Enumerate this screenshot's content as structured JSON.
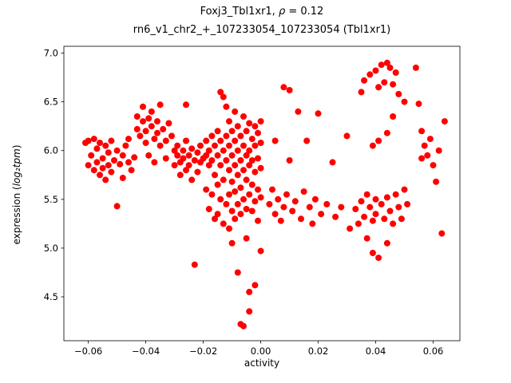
{
  "figure": {
    "title_prefix": "Foxj3_Tbl1xr1, ",
    "title_rho": "ρ",
    "title_rest": " = 0.12",
    "title_line2": "rn6_v1_chr2_+_107233054_107233054 (Tbl1xr1)",
    "x_label": "activity",
    "y_label_prefix": "expression (",
    "y_label_math": "log₂tpm",
    "y_label_suffix": ")"
  },
  "chart_data": {
    "type": "scatter",
    "title": "Foxj3_Tbl1xr1, ρ = 0.12",
    "subtitle": "rn6_v1_chr2_+_107233054_107233054 (Tbl1xr1)",
    "xlabel": "activity",
    "ylabel": "expression (log2tpm)",
    "marker_color": "#ff0000",
    "marker_size_px": 4,
    "grid": false,
    "legend": "none",
    "xlim": [
      -0.0685,
      0.0693
    ],
    "ylim": [
      4.05,
      7.07
    ],
    "x_ticks": [
      -0.06,
      -0.04,
      -0.02,
      0.0,
      0.02,
      0.04,
      0.06
    ],
    "x_tick_labels": [
      "−0.06",
      "−0.04",
      "−0.02",
      "0.00",
      "0.02",
      "0.04",
      "0.06"
    ],
    "y_ticks": [
      4.5,
      5.0,
      5.5,
      6.0,
      6.5,
      7.0
    ],
    "y_tick_labels": [
      "4.5",
      "5.0",
      "5.5",
      "6.0",
      "6.5",
      "7.0"
    ],
    "points": [
      [
        -0.061,
        6.08
      ],
      [
        -0.06,
        6.1
      ],
      [
        -0.06,
        5.85
      ],
      [
        -0.059,
        5.95
      ],
      [
        -0.058,
        6.12
      ],
      [
        -0.058,
        5.8
      ],
      [
        -0.057,
        5.88
      ],
      [
        -0.057,
        6.02
      ],
      [
        -0.056,
        5.75
      ],
      [
        -0.056,
        6.08
      ],
      [
        -0.055,
        5.92
      ],
      [
        -0.055,
        5.82
      ],
      [
        -0.054,
        6.05
      ],
      [
        -0.054,
        5.7
      ],
      [
        -0.053,
        5.98
      ],
      [
        -0.053,
        5.85
      ],
      [
        -0.052,
        6.1
      ],
      [
        -0.052,
        5.78
      ],
      [
        -0.051,
        5.9
      ],
      [
        -0.05,
        6.0
      ],
      [
        -0.05,
        5.43
      ],
      [
        -0.049,
        5.86
      ],
      [
        -0.048,
        5.95
      ],
      [
        -0.048,
        5.72
      ],
      [
        -0.047,
        6.05
      ],
      [
        -0.046,
        5.88
      ],
      [
        -0.046,
        6.12
      ],
      [
        -0.045,
        5.8
      ],
      [
        -0.044,
        5.93
      ],
      [
        -0.043,
        6.22
      ],
      [
        -0.043,
        6.35
      ],
      [
        -0.042,
        6.15
      ],
      [
        -0.041,
        6.3
      ],
      [
        -0.041,
        6.45
      ],
      [
        -0.04,
        6.2
      ],
      [
        -0.04,
        6.08
      ],
      [
        -0.039,
        6.33
      ],
      [
        -0.039,
        5.95
      ],
      [
        -0.038,
        6.25
      ],
      [
        -0.038,
        6.4
      ],
      [
        -0.037,
        6.12
      ],
      [
        -0.037,
        5.88
      ],
      [
        -0.036,
        6.3
      ],
      [
        -0.036,
        6.18
      ],
      [
        -0.035,
        6.47
      ],
      [
        -0.035,
        6.05
      ],
      [
        -0.034,
        6.22
      ],
      [
        -0.033,
        6.1
      ],
      [
        -0.033,
        5.92
      ],
      [
        -0.032,
        6.28
      ],
      [
        -0.031,
        6.15
      ],
      [
        -0.03,
        6.0
      ],
      [
        -0.03,
        5.85
      ],
      [
        -0.026,
        6.47
      ],
      [
        -0.029,
        5.95
      ],
      [
        -0.029,
        6.05
      ],
      [
        -0.028,
        5.88
      ],
      [
        -0.028,
        5.75
      ],
      [
        -0.027,
        6.0
      ],
      [
        -0.027,
        5.92
      ],
      [
        -0.026,
        5.8
      ],
      [
        -0.026,
        6.1
      ],
      [
        -0.025,
        5.95
      ],
      [
        -0.025,
        5.85
      ],
      [
        -0.024,
        6.02
      ],
      [
        -0.024,
        5.7
      ],
      [
        -0.023,
        5.9
      ],
      [
        -0.023,
        4.83
      ],
      [
        -0.022,
        5.98
      ],
      [
        -0.022,
        5.78
      ],
      [
        -0.021,
        5.88
      ],
      [
        -0.021,
        6.05
      ],
      [
        -0.02,
        5.92
      ],
      [
        -0.019,
        6.1
      ],
      [
        -0.019,
        5.95
      ],
      [
        -0.019,
        5.6
      ],
      [
        -0.018,
        6.0
      ],
      [
        -0.018,
        5.85
      ],
      [
        -0.018,
        5.4
      ],
      [
        -0.017,
        6.15
      ],
      [
        -0.017,
        5.9
      ],
      [
        -0.017,
        5.55
      ],
      [
        -0.016,
        6.05
      ],
      [
        -0.016,
        5.75
      ],
      [
        -0.016,
        5.3
      ],
      [
        -0.015,
        6.2
      ],
      [
        -0.015,
        5.95
      ],
      [
        -0.015,
        5.65
      ],
      [
        -0.015,
        5.35
      ],
      [
        -0.014,
        6.6
      ],
      [
        -0.014,
        6.1
      ],
      [
        -0.014,
        5.85
      ],
      [
        -0.014,
        5.5
      ],
      [
        -0.013,
        6.55
      ],
      [
        -0.013,
        6.0
      ],
      [
        -0.013,
        5.7
      ],
      [
        -0.013,
        5.25
      ],
      [
        -0.012,
        6.45
      ],
      [
        -0.012,
        6.15
      ],
      [
        -0.012,
        5.9
      ],
      [
        -0.012,
        5.45
      ],
      [
        -0.011,
        6.3
      ],
      [
        -0.011,
        6.05
      ],
      [
        -0.011,
        5.8
      ],
      [
        -0.011,
        5.55
      ],
      [
        -0.011,
        5.2
      ],
      [
        -0.01,
        6.2
      ],
      [
        -0.01,
        5.95
      ],
      [
        -0.01,
        5.68
      ],
      [
        -0.01,
        5.38
      ],
      [
        -0.01,
        5.05
      ],
      [
        -0.009,
        6.4
      ],
      [
        -0.009,
        6.1
      ],
      [
        -0.009,
        5.85
      ],
      [
        -0.009,
        5.58
      ],
      [
        -0.009,
        5.3
      ],
      [
        -0.008,
        6.25
      ],
      [
        -0.008,
        6.0
      ],
      [
        -0.008,
        5.75
      ],
      [
        -0.008,
        5.45
      ],
      [
        -0.008,
        4.75
      ],
      [
        -0.007,
        6.15
      ],
      [
        -0.007,
        5.9
      ],
      [
        -0.007,
        5.62
      ],
      [
        -0.007,
        5.35
      ],
      [
        -0.007,
        4.22
      ],
      [
        -0.006,
        6.35
      ],
      [
        -0.006,
        6.05
      ],
      [
        -0.006,
        5.8
      ],
      [
        -0.006,
        5.5
      ],
      [
        -0.006,
        4.2
      ],
      [
        -0.005,
        6.2
      ],
      [
        -0.005,
        5.95
      ],
      [
        -0.005,
        5.7
      ],
      [
        -0.005,
        5.4
      ],
      [
        -0.005,
        5.1
      ],
      [
        -0.004,
        6.28
      ],
      [
        -0.004,
        6.0
      ],
      [
        -0.004,
        5.85
      ],
      [
        -0.004,
        5.55
      ],
      [
        -0.004,
        4.55
      ],
      [
        -0.004,
        4.35
      ],
      [
        -0.003,
        6.12
      ],
      [
        -0.003,
        5.9
      ],
      [
        -0.003,
        5.65
      ],
      [
        -0.003,
        5.38
      ],
      [
        -0.002,
        6.25
      ],
      [
        -0.002,
        6.05
      ],
      [
        -0.002,
        5.78
      ],
      [
        -0.002,
        5.48
      ],
      [
        -0.002,
        4.62
      ],
      [
        -0.001,
        6.18
      ],
      [
        -0.001,
        5.92
      ],
      [
        -0.001,
        5.6
      ],
      [
        -0.001,
        5.28
      ],
      [
        0.0,
        6.3
      ],
      [
        0.0,
        6.08
      ],
      [
        0.0,
        5.82
      ],
      [
        0.0,
        5.52
      ],
      [
        0.0,
        4.97
      ],
      [
        0.003,
        5.45
      ],
      [
        0.004,
        5.6
      ],
      [
        0.005,
        5.35
      ],
      [
        0.005,
        6.1
      ],
      [
        0.006,
        5.5
      ],
      [
        0.007,
        5.28
      ],
      [
        0.008,
        6.65
      ],
      [
        0.008,
        5.42
      ],
      [
        0.009,
        5.55
      ],
      [
        0.01,
        6.62
      ],
      [
        0.01,
        5.9
      ],
      [
        0.011,
        5.38
      ],
      [
        0.012,
        5.48
      ],
      [
        0.013,
        6.4
      ],
      [
        0.014,
        5.3
      ],
      [
        0.015,
        5.58
      ],
      [
        0.016,
        6.1
      ],
      [
        0.017,
        5.42
      ],
      [
        0.018,
        5.25
      ],
      [
        0.019,
        5.5
      ],
      [
        0.02,
        6.38
      ],
      [
        0.021,
        5.35
      ],
      [
        0.023,
        5.45
      ],
      [
        0.025,
        5.88
      ],
      [
        0.026,
        5.32
      ],
      [
        0.028,
        5.42
      ],
      [
        0.03,
        6.15
      ],
      [
        0.031,
        5.2
      ],
      [
        0.033,
        5.4
      ],
      [
        0.034,
        5.25
      ],
      [
        0.035,
        5.48
      ],
      [
        0.035,
        6.6
      ],
      [
        0.036,
        5.32
      ],
      [
        0.036,
        6.72
      ],
      [
        0.037,
        5.55
      ],
      [
        0.037,
        5.1
      ],
      [
        0.038,
        6.78
      ],
      [
        0.038,
        5.42
      ],
      [
        0.039,
        5.28
      ],
      [
        0.039,
        4.95
      ],
      [
        0.039,
        6.05
      ],
      [
        0.04,
        6.82
      ],
      [
        0.04,
        5.5
      ],
      [
        0.04,
        5.35
      ],
      [
        0.041,
        4.9
      ],
      [
        0.041,
        6.65
      ],
      [
        0.041,
        6.1
      ],
      [
        0.042,
        5.45
      ],
      [
        0.042,
        6.88
      ],
      [
        0.043,
        5.3
      ],
      [
        0.043,
        6.7
      ],
      [
        0.044,
        6.9
      ],
      [
        0.044,
        5.52
      ],
      [
        0.044,
        5.05
      ],
      [
        0.044,
        6.18
      ],
      [
        0.045,
        6.85
      ],
      [
        0.045,
        5.38
      ],
      [
        0.046,
        6.68
      ],
      [
        0.046,
        5.25
      ],
      [
        0.046,
        6.35
      ],
      [
        0.047,
        5.55
      ],
      [
        0.047,
        6.8
      ],
      [
        0.048,
        5.42
      ],
      [
        0.048,
        6.58
      ],
      [
        0.049,
        5.3
      ],
      [
        0.05,
        6.5
      ],
      [
        0.05,
        5.6
      ],
      [
        0.051,
        5.45
      ],
      [
        0.054,
        6.85
      ],
      [
        0.055,
        6.48
      ],
      [
        0.056,
        6.2
      ],
      [
        0.056,
        5.92
      ],
      [
        0.057,
        6.05
      ],
      [
        0.058,
        5.95
      ],
      [
        0.059,
        6.12
      ],
      [
        0.06,
        5.85
      ],
      [
        0.061,
        5.68
      ],
      [
        0.062,
        6.0
      ],
      [
        0.063,
        5.15
      ],
      [
        0.064,
        6.3
      ]
    ]
  }
}
